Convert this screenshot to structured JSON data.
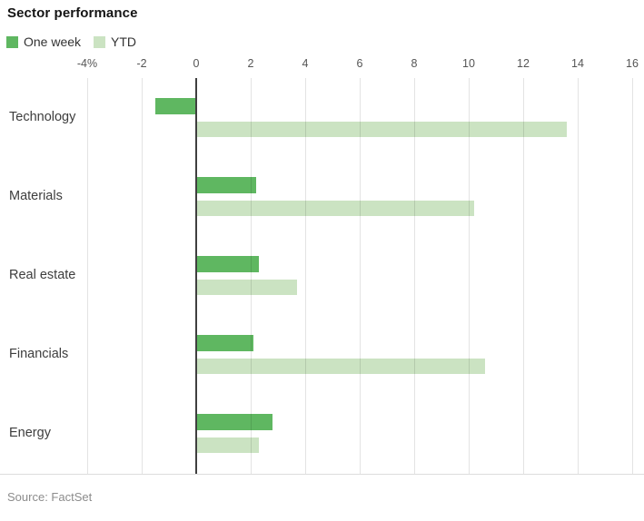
{
  "title": "Sector performance",
  "source": "Source: FactSet",
  "legend": {
    "items": [
      {
        "label": "One week",
        "color": "#5fb761"
      },
      {
        "label": "YTD",
        "color": "#cbe3c2"
      }
    ]
  },
  "chart_data": {
    "type": "bar",
    "orientation": "horizontal",
    "title": "Sector performance",
    "categories": [
      "Technology",
      "Materials",
      "Real estate",
      "Financials",
      "Energy"
    ],
    "series": [
      {
        "name": "One week",
        "color": "#5fb761",
        "values": [
          -1.5,
          2.2,
          2.3,
          2.1,
          2.8
        ]
      },
      {
        "name": "YTD",
        "color": "#cbe3c2",
        "values": [
          13.6,
          10.2,
          3.7,
          10.6,
          2.3
        ]
      }
    ],
    "unit": "%",
    "xlim": [
      -4,
      16
    ],
    "xticks": [
      -4,
      -2,
      0,
      2,
      4,
      6,
      8,
      10,
      12,
      14,
      16
    ],
    "xtick_labels": [
      "-4%",
      "-2",
      "0",
      "2",
      "4",
      "6",
      "8",
      "10",
      "12",
      "14",
      "16"
    ],
    "grid": "vertical",
    "legend_position": "top-left",
    "axis_line_at": 0,
    "source_note": "Source: FactSet"
  }
}
